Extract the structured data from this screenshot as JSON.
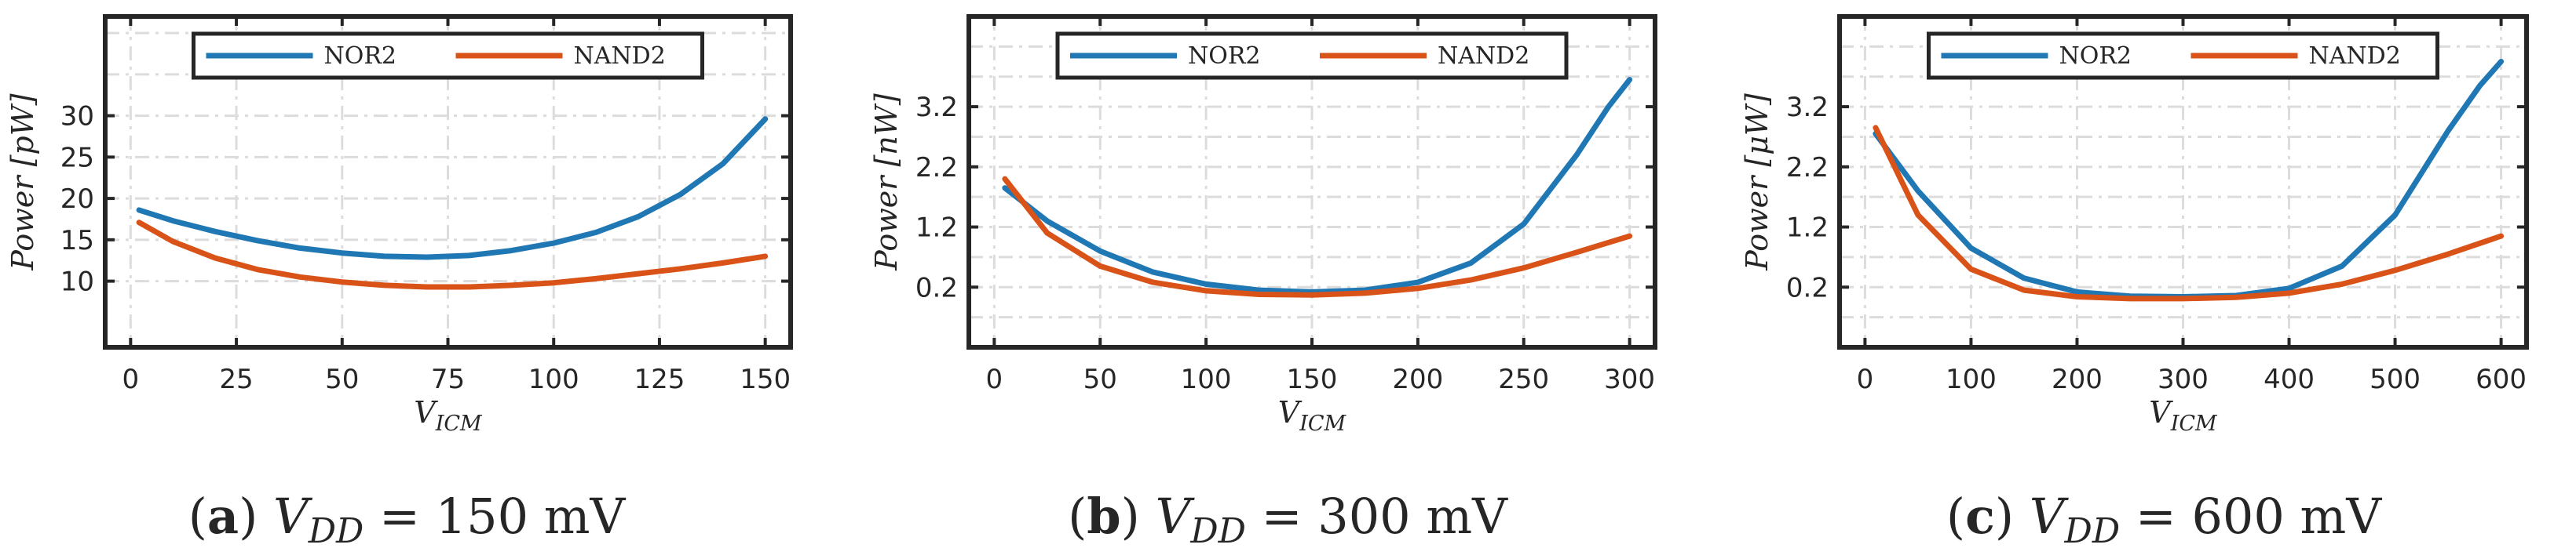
{
  "colors": {
    "nor2": "#1f77b4",
    "nand2": "#d95319",
    "axis": "#262626",
    "grid": "#dcdcdc"
  },
  "chart_data": [
    {
      "type": "line",
      "panel": "(a)",
      "caption": {
        "label": "(a)",
        "lhs": "V",
        "lhs_sub": "DD",
        "rhs": "= 150 mV"
      },
      "xlabel": "V",
      "xlabel_sub": "ICM",
      "ylabel": "Power [pW]",
      "xlim": [
        -6,
        156
      ],
      "ylim": [
        2,
        42
      ],
      "x_ticks": [
        0,
        25,
        50,
        75,
        100,
        125,
        150
      ],
      "x_ticklabels": [
        "0",
        "25",
        "50",
        "75",
        "100",
        "125",
        "150"
      ],
      "y_ticks": [
        10,
        15,
        20,
        25,
        30
      ],
      "y_ticklabels": [
        "10",
        "15",
        "20",
        "25",
        "30"
      ],
      "x_grid": [
        0,
        25,
        50,
        75,
        100,
        125,
        150
      ],
      "y_grid": [
        10,
        15,
        20,
        25,
        30,
        35,
        40
      ],
      "grid": true,
      "legend_position": "top",
      "series": [
        {
          "name": "NOR2",
          "color": "#1f77b4",
          "x": [
            2,
            10,
            20,
            30,
            40,
            50,
            60,
            70,
            80,
            90,
            100,
            110,
            120,
            130,
            140,
            150
          ],
          "y": [
            18.6,
            17.3,
            16.0,
            14.9,
            14.0,
            13.4,
            13.0,
            12.9,
            13.1,
            13.7,
            14.6,
            15.9,
            17.8,
            20.5,
            24.2,
            29.6
          ]
        },
        {
          "name": "NAND2",
          "color": "#d95319",
          "x": [
            2,
            10,
            20,
            30,
            40,
            50,
            60,
            70,
            80,
            90,
            100,
            110,
            120,
            130,
            140,
            150
          ],
          "y": [
            17.1,
            14.8,
            12.8,
            11.4,
            10.5,
            9.9,
            9.5,
            9.3,
            9.3,
            9.5,
            9.8,
            10.3,
            10.9,
            11.5,
            12.2,
            13.0
          ]
        }
      ]
    },
    {
      "type": "line",
      "panel": "(b)",
      "caption": {
        "label": "(b)",
        "lhs": "V",
        "lhs_sub": "DD",
        "rhs": "= 300 mV"
      },
      "xlabel": "V",
      "xlabel_sub": "ICM",
      "ylabel": "Power [nW]",
      "xlim": [
        -12,
        312
      ],
      "ylim": [
        -0.8,
        4.7
      ],
      "x_ticks": [
        0,
        50,
        100,
        150,
        200,
        250,
        300
      ],
      "x_ticklabels": [
        "0",
        "50",
        "100",
        "150",
        "200",
        "250",
        "300"
      ],
      "y_ticks": [
        0.2,
        1.2,
        2.2,
        3.2
      ],
      "y_ticklabels": [
        "0.2",
        "1.2",
        "2.2",
        "3.2"
      ],
      "x_grid": [
        0,
        50,
        100,
        150,
        200,
        250,
        300
      ],
      "y_grid": [
        -0.3,
        0.2,
        0.7,
        1.2,
        1.7,
        2.2,
        2.7,
        3.2,
        3.7,
        4.2
      ],
      "grid": true,
      "legend_position": "top",
      "series": [
        {
          "name": "NOR2",
          "color": "#1f77b4",
          "x": [
            5,
            25,
            50,
            75,
            100,
            125,
            150,
            175,
            200,
            225,
            250,
            275,
            290,
            300
          ],
          "y": [
            1.85,
            1.3,
            0.8,
            0.45,
            0.25,
            0.15,
            0.12,
            0.15,
            0.28,
            0.6,
            1.25,
            2.4,
            3.2,
            3.65
          ]
        },
        {
          "name": "NAND2",
          "color": "#d95319",
          "x": [
            5,
            25,
            50,
            75,
            100,
            125,
            150,
            175,
            200,
            225,
            250,
            275,
            300
          ],
          "y": [
            2.0,
            1.1,
            0.55,
            0.28,
            0.14,
            0.08,
            0.07,
            0.1,
            0.18,
            0.32,
            0.52,
            0.78,
            1.05
          ]
        }
      ]
    },
    {
      "type": "line",
      "panel": "(c)",
      "caption": {
        "label": "(c)",
        "lhs": "V",
        "lhs_sub": "DD",
        "rhs": "= 600 mV"
      },
      "xlabel": "V",
      "xlabel_sub": "ICM",
      "ylabel": "Power [μW]",
      "xlim": [
        -24,
        624
      ],
      "ylim": [
        -0.8,
        4.7
      ],
      "x_ticks": [
        0,
        100,
        200,
        300,
        400,
        500,
        600
      ],
      "x_ticklabels": [
        "0",
        "100",
        "200",
        "300",
        "400",
        "500",
        "600"
      ],
      "y_ticks": [
        0.2,
        1.2,
        2.2,
        3.2
      ],
      "y_ticklabels": [
        "0.2",
        "1.2",
        "2.2",
        "3.2"
      ],
      "x_grid": [
        0,
        100,
        200,
        300,
        400,
        500,
        600
      ],
      "y_grid": [
        -0.3,
        0.2,
        0.7,
        1.2,
        1.7,
        2.2,
        2.7,
        3.2,
        3.7,
        4.2
      ],
      "grid": true,
      "legend_position": "top",
      "series": [
        {
          "name": "NOR2",
          "color": "#1f77b4",
          "x": [
            10,
            50,
            100,
            150,
            200,
            250,
            300,
            350,
            400,
            450,
            500,
            550,
            580,
            600
          ],
          "y": [
            2.75,
            1.8,
            0.85,
            0.35,
            0.12,
            0.05,
            0.04,
            0.06,
            0.18,
            0.55,
            1.4,
            2.8,
            3.55,
            3.95
          ]
        },
        {
          "name": "NAND2",
          "color": "#d95319",
          "x": [
            10,
            50,
            100,
            150,
            200,
            250,
            300,
            350,
            400,
            450,
            500,
            550,
            600
          ],
          "y": [
            2.85,
            1.4,
            0.5,
            0.15,
            0.04,
            0.01,
            0.01,
            0.03,
            0.1,
            0.25,
            0.48,
            0.75,
            1.05
          ]
        }
      ]
    }
  ]
}
